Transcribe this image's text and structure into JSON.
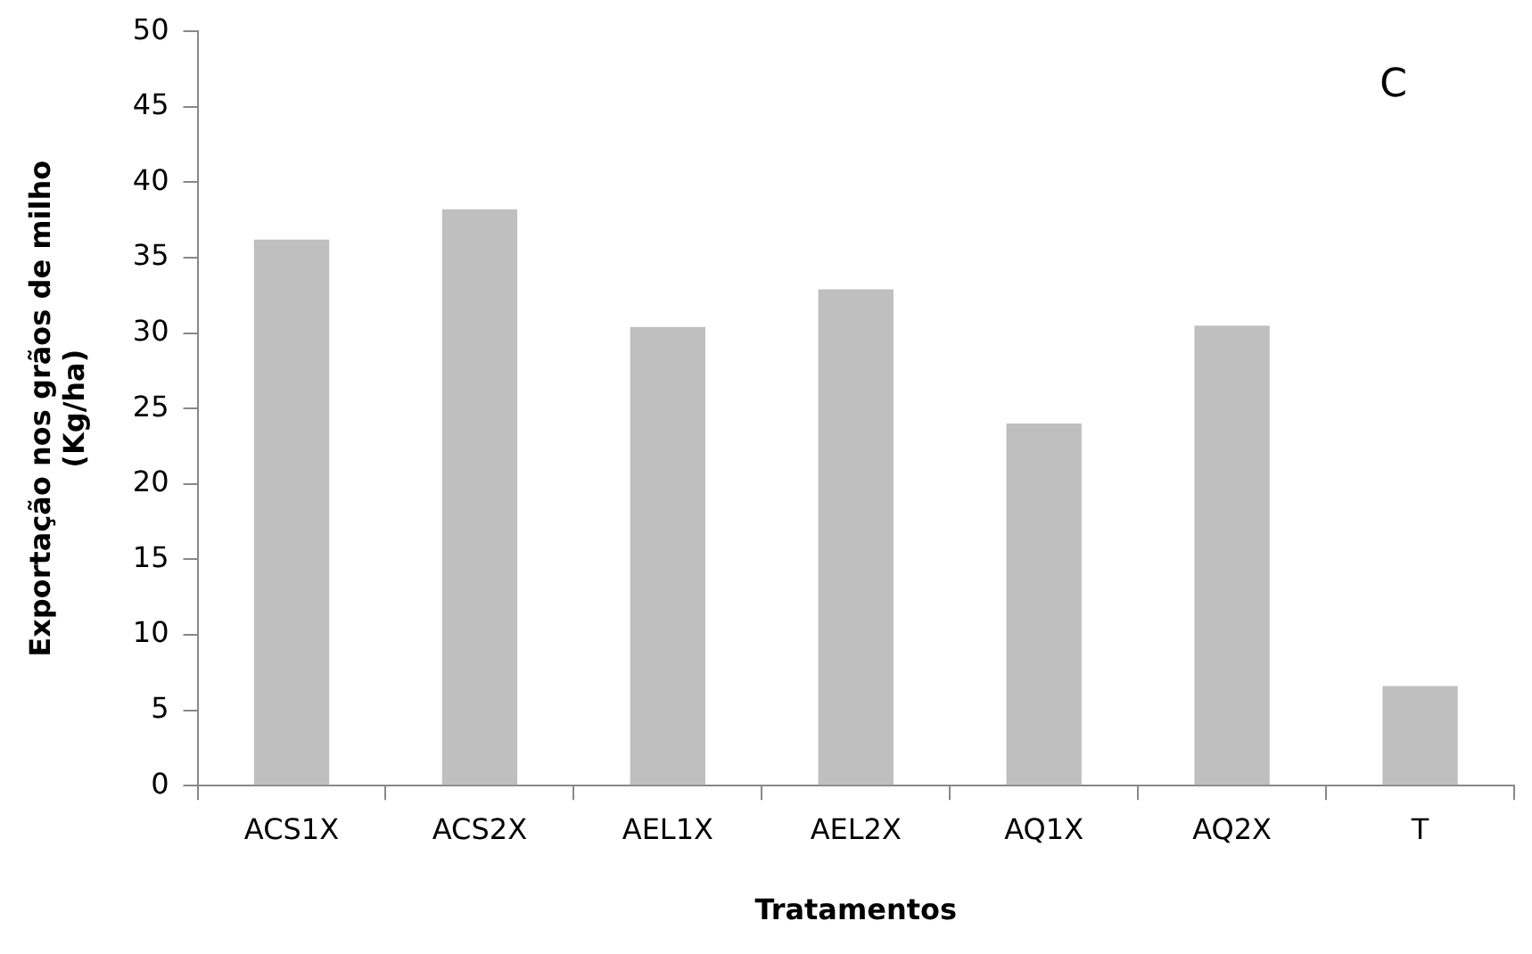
{
  "chart_data": {
    "type": "bar",
    "categories": [
      "ACS1X",
      "ACS2X",
      "AEL1X",
      "AEL2X",
      "AQ1X",
      "AQ2X",
      "T"
    ],
    "values": [
      36.2,
      38.2,
      30.4,
      32.9,
      24.0,
      30.5,
      6.6
    ],
    "color": "#bfbfbf",
    "ylim": [
      0,
      50
    ],
    "yticks": [
      0,
      5,
      10,
      15,
      20,
      25,
      30,
      35,
      40,
      45,
      50
    ],
    "grid": false,
    "legend": false,
    "xlabel": "Tratamentos",
    "ylabel": "Exportação nos grãos de milho\n(Kg/ha)",
    "annotations": [
      "C"
    ]
  }
}
